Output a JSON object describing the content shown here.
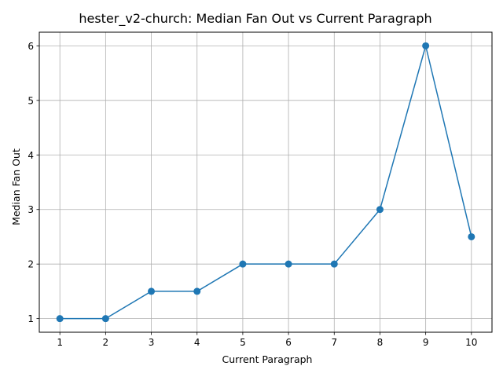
{
  "chart_data": {
    "type": "line",
    "title": "hester_v2-church: Median Fan Out vs Current Paragraph",
    "xlabel": "Current Paragraph",
    "ylabel": "Median Fan Out",
    "x": [
      1,
      2,
      3,
      4,
      5,
      6,
      7,
      8,
      9,
      10
    ],
    "series": [
      {
        "values": [
          1,
          1,
          1.5,
          1.5,
          2,
          2,
          2,
          3,
          6,
          2.5
        ],
        "color": "#1f77b4",
        "marker": "circle"
      }
    ],
    "xticks": [
      1,
      2,
      3,
      4,
      5,
      6,
      7,
      8,
      9,
      10
    ],
    "yticks": [
      1,
      2,
      3,
      4,
      5,
      6
    ],
    "xlim": [
      0.55,
      10.45
    ],
    "ylim": [
      0.75,
      6.25
    ],
    "grid": true,
    "legend": "none"
  }
}
